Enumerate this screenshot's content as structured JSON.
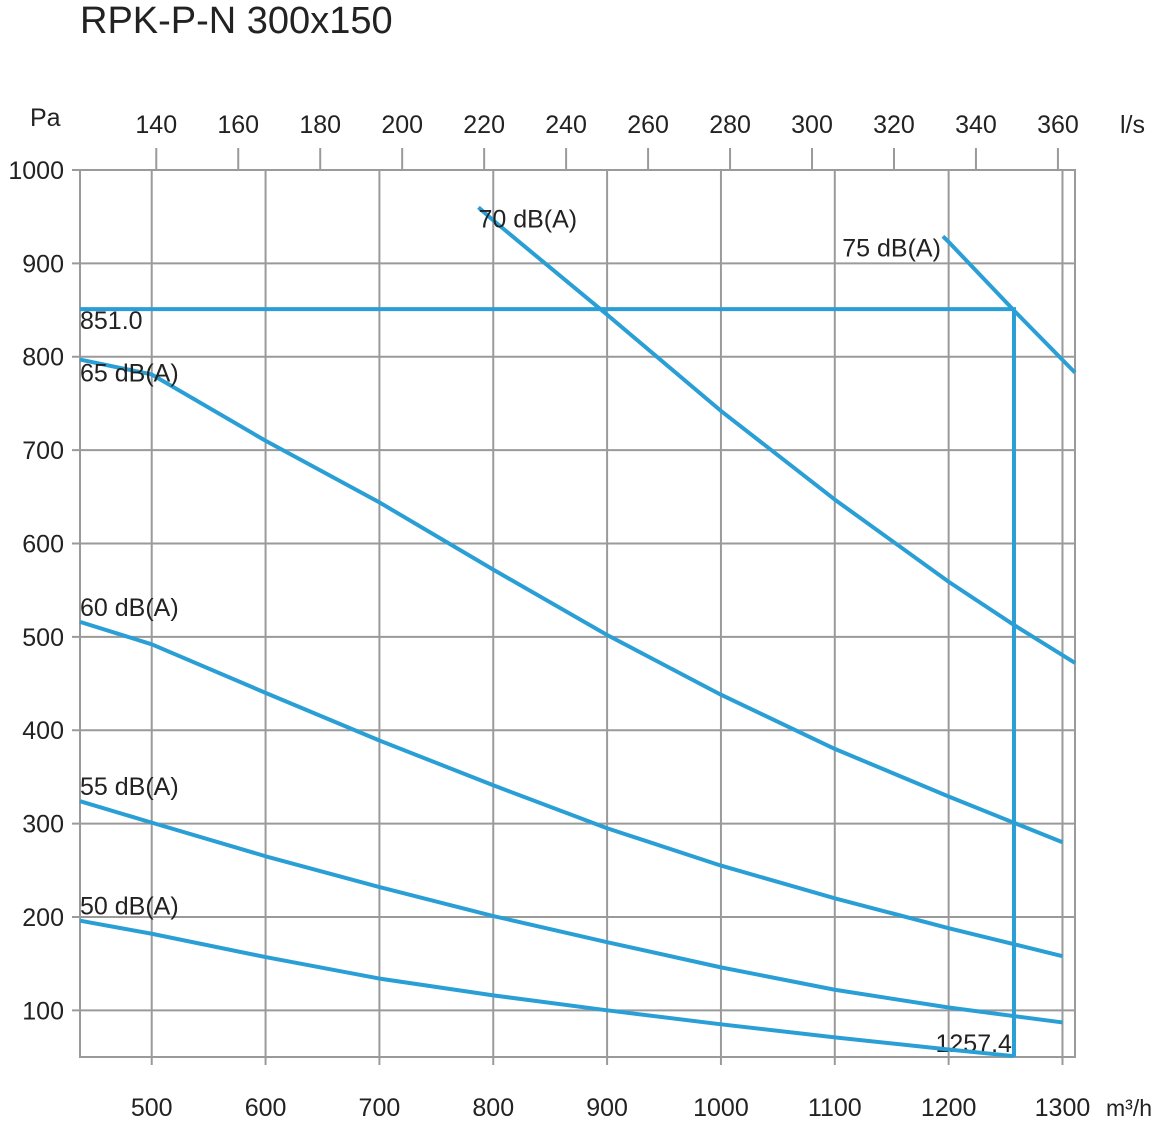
{
  "chart_data": {
    "type": "line",
    "title": "RPK-P-N 300x150",
    "xlabel": "m³/h",
    "ylabel": "Pa",
    "x2label": "l/s",
    "xlim": [
      437,
      1311
    ],
    "ylim": [
      50,
      1000
    ],
    "x_ticks": [
      500,
      600,
      700,
      800,
      900,
      1000,
      1100,
      1200,
      1300
    ],
    "x2_ticks": [
      140,
      160,
      180,
      200,
      220,
      240,
      260,
      280,
      300,
      320,
      340,
      360
    ],
    "y_ticks": [
      100,
      200,
      300,
      400,
      500,
      600,
      700,
      800,
      900,
      1000
    ],
    "grid": true,
    "color": "#2a9fd6",
    "series": [
      {
        "name": "50 dB(A)",
        "points": [
          [
            437,
            196
          ],
          [
            500,
            182
          ],
          [
            600,
            157
          ],
          [
            700,
            134
          ],
          [
            800,
            116
          ],
          [
            900,
            100
          ],
          [
            1000,
            85
          ],
          [
            1100,
            71
          ],
          [
            1200,
            58
          ],
          [
            1257,
            51
          ]
        ]
      },
      {
        "name": "55 dB(A)",
        "points": [
          [
            437,
            324
          ],
          [
            500,
            301
          ],
          [
            600,
            265
          ],
          [
            700,
            232
          ],
          [
            800,
            201
          ],
          [
            900,
            173
          ],
          [
            1000,
            146
          ],
          [
            1100,
            122
          ],
          [
            1200,
            103
          ],
          [
            1300,
            87
          ]
        ]
      },
      {
        "name": "60 dB(A)",
        "points": [
          [
            437,
            516
          ],
          [
            500,
            492
          ],
          [
            600,
            440
          ],
          [
            700,
            389
          ],
          [
            800,
            341
          ],
          [
            900,
            295
          ],
          [
            1000,
            255
          ],
          [
            1100,
            220
          ],
          [
            1200,
            188
          ],
          [
            1300,
            158
          ]
        ]
      },
      {
        "name": "65 dB(A)",
        "points": [
          [
            437,
            797
          ],
          [
            500,
            781
          ],
          [
            600,
            710
          ],
          [
            700,
            644
          ],
          [
            800,
            572
          ],
          [
            900,
            502
          ],
          [
            1000,
            438
          ],
          [
            1100,
            380
          ],
          [
            1200,
            329
          ],
          [
            1300,
            280
          ]
        ]
      },
      {
        "name": "70 dB(A)",
        "points": [
          [
            787,
            960
          ],
          [
            800,
            946
          ],
          [
            900,
            845
          ],
          [
            1000,
            742
          ],
          [
            1100,
            647
          ],
          [
            1200,
            559
          ],
          [
            1257,
            513
          ],
          [
            1311,
            472
          ]
        ]
      },
      {
        "name": "75 dB(A)",
        "points": [
          [
            1195,
            929
          ],
          [
            1200,
            923
          ],
          [
            1257,
            850
          ],
          [
            1311,
            783
          ]
        ]
      }
    ],
    "operating_point": {
      "x": 1257.4,
      "y": 851.0,
      "x_label": "1257.4",
      "y_label": "851.0"
    }
  }
}
